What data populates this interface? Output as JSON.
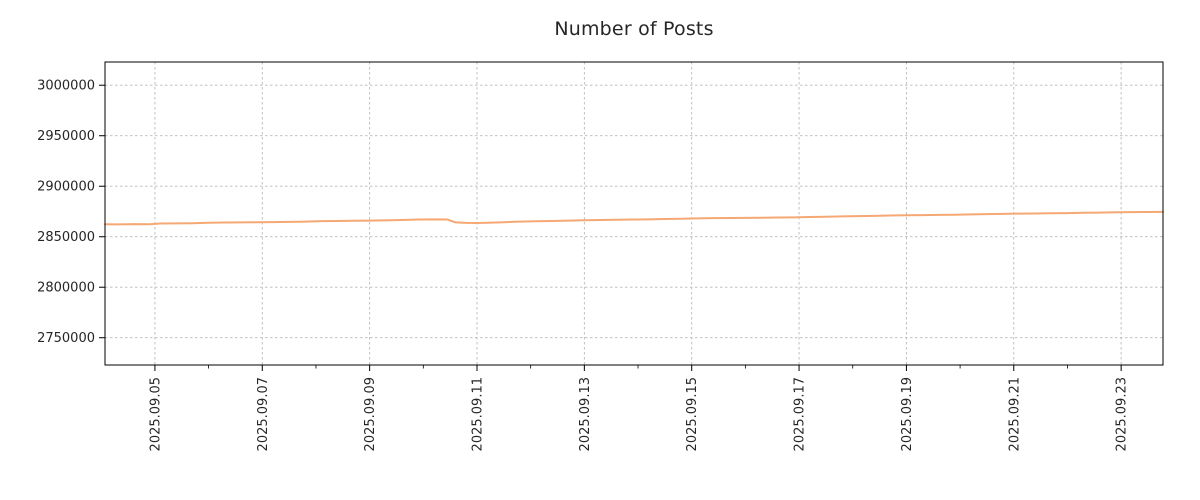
{
  "chart_data": {
    "type": "line",
    "title": "Number of Posts",
    "xlabel": "",
    "ylabel": "",
    "legend": "none",
    "grid": "dashed",
    "grid_color": "#b8b8b8",
    "axis_color": "#000000",
    "tick_label_color": "#262626",
    "line_color": "#f5a873",
    "line_width": 2,
    "xlim_days": [
      4.07,
      23.78
    ],
    "ylim": [
      2723000,
      3023000
    ],
    "y_ticks": [
      {
        "value": 2750000,
        "label": "2750000"
      },
      {
        "value": 2800000,
        "label": "2800000"
      },
      {
        "value": 2850000,
        "label": "2850000"
      },
      {
        "value": 2900000,
        "label": "2900000"
      },
      {
        "value": 2950000,
        "label": "2950000"
      },
      {
        "value": 3000000,
        "label": "3000000"
      }
    ],
    "x_ticks": [
      {
        "day": 5,
        "label": "2025.09.05"
      },
      {
        "day": 7,
        "label": "2025.09.07"
      },
      {
        "day": 9,
        "label": "2025.09.09"
      },
      {
        "day": 11,
        "label": "2025.09.11"
      },
      {
        "day": 13,
        "label": "2025.09.13"
      },
      {
        "day": 15,
        "label": "2025.09.15"
      },
      {
        "day": 17,
        "label": "2025.09.17"
      },
      {
        "day": 19,
        "label": "2025.09.19"
      },
      {
        "day": 21,
        "label": "2025.09.21"
      },
      {
        "day": 23,
        "label": "2025.09.23"
      }
    ],
    "x_minor_days": [
      6,
      8,
      10,
      12,
      14,
      16,
      18,
      20,
      22
    ],
    "series": [
      {
        "name": "Number of Posts",
        "x_days": [
          4.07,
          4.3,
          4.6,
          4.9,
          5.1,
          5.4,
          5.7,
          6.0,
          6.3,
          6.6,
          6.9,
          7.2,
          7.5,
          7.8,
          8.1,
          8.4,
          8.7,
          9.0,
          9.3,
          9.6,
          9.9,
          10.2,
          10.45,
          10.6,
          10.8,
          11.0,
          11.2,
          11.5,
          11.8,
          12.1,
          12.4,
          12.7,
          13.0,
          13.3,
          13.6,
          13.9,
          14.2,
          14.5,
          14.8,
          15.1,
          15.4,
          15.7,
          16.0,
          16.3,
          16.6,
          16.9,
          17.2,
          17.5,
          17.8,
          18.1,
          18.4,
          18.7,
          19.0,
          19.3,
          19.6,
          19.9,
          20.2,
          20.5,
          20.8,
          21.1,
          21.4,
          21.7,
          22.0,
          22.3,
          22.6,
          22.9,
          23.2,
          23.5,
          23.78
        ],
        "values": [
          2862300,
          2862200,
          2862500,
          2862400,
          2863100,
          2863200,
          2863400,
          2863900,
          2864100,
          2864200,
          2864400,
          2864500,
          2864700,
          2865000,
          2865400,
          2865600,
          2865800,
          2866000,
          2866200,
          2866500,
          2867000,
          2867200,
          2867000,
          2864200,
          2863700,
          2863600,
          2863900,
          2864400,
          2864900,
          2865300,
          2865600,
          2865900,
          2866300,
          2866500,
          2866800,
          2867000,
          2867200,
          2867500,
          2867800,
          2868200,
          2868400,
          2868500,
          2868700,
          2868800,
          2869000,
          2869200,
          2869500,
          2869800,
          2870100,
          2870400,
          2870700,
          2871000,
          2871300,
          2871400,
          2871600,
          2871800,
          2872100,
          2872400,
          2872600,
          2872900,
          2873000,
          2873200,
          2873400,
          2873700,
          2873900,
          2874200,
          2874400,
          2874500,
          2874600
        ]
      }
    ]
  }
}
